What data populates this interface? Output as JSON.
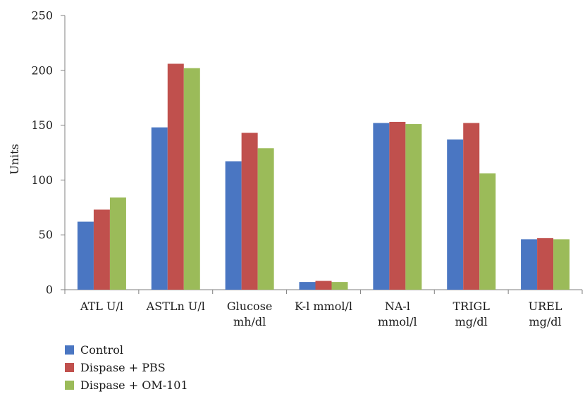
{
  "chart_data": {
    "type": "bar",
    "categories": [
      [
        "ATL U/l"
      ],
      [
        "ASTLn U/l"
      ],
      [
        "Glucose",
        "mh/dl"
      ],
      [
        "K-l mmol/l"
      ],
      [
        "NA-l",
        "mmol/l"
      ],
      [
        "TRIGL",
        "mg/dl"
      ],
      [
        "UREL",
        "mg/dl"
      ]
    ],
    "series": [
      {
        "name": "Control",
        "color": "#4a76c2",
        "values": [
          62,
          148,
          117,
          7,
          152,
          137,
          46
        ]
      },
      {
        "name": "Dispase + PBS",
        "color": "#c0504d",
        "values": [
          73,
          206,
          143,
          8,
          153,
          152,
          47
        ]
      },
      {
        "name": "Dispase + OM-101",
        "color": "#9bbb59",
        "values": [
          84,
          202,
          129,
          7,
          151,
          106,
          46
        ]
      }
    ],
    "ylabel": "Units",
    "ylim": [
      0,
      250
    ],
    "yticks": [
      0,
      50,
      100,
      150,
      200,
      250
    ],
    "grid": false,
    "legend_position": "bottom-left"
  }
}
